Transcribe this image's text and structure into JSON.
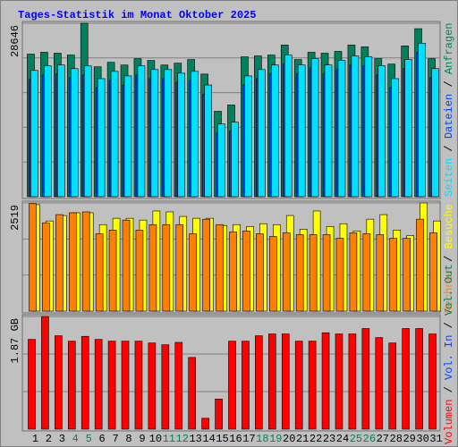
{
  "chart_data": {
    "type": "bar",
    "title": "Tages-Statistik im Monat Oktober 2025",
    "legend_separator": " / ",
    "categories": [
      "1",
      "2",
      "3",
      "4",
      "5",
      "6",
      "7",
      "8",
      "9",
      "10",
      "11",
      "12",
      "13",
      "14",
      "15",
      "16",
      "17",
      "18",
      "19",
      "20",
      "21",
      "22",
      "23",
      "24",
      "25",
      "26",
      "27",
      "28",
      "29",
      "30",
      "31"
    ],
    "category_colors": [
      "#000000",
      "#000000",
      "#000000",
      "#00805c",
      "#00805c",
      "#000000",
      "#000000",
      "#000000",
      "#000000",
      "#000000",
      "#00805c",
      "#00805c",
      "#000000",
      "#000000",
      "#000000",
      "#000000",
      "#000000",
      "#00805c",
      "#00805c",
      "#000000",
      "#000000",
      "#000000",
      "#000000",
      "#000000",
      "#00805c",
      "#00805c",
      "#000000",
      "#000000",
      "#000000",
      "#000000",
      "#000000"
    ],
    "panels": [
      {
        "ylim": [
          0,
          28646
        ],
        "yticks": [
          28646
        ],
        "series": [
          {
            "name": "Seiten",
            "color": "#00e0ff",
            "values": [
              20850,
              21600,
              21750,
              21150,
              21600,
              19500,
              20700,
              19950,
              21600,
              21000,
              21000,
              20400,
              20700,
              18450,
              12000,
              12300,
              19950,
              21000,
              21750,
              23400,
              21750,
              22800,
              21750,
              22500,
              23250,
              23100,
              21600,
              19500,
              22650,
              25350,
              21150
            ]
          },
          {
            "name": "Dateien",
            "color": "#0040ff",
            "values": [
              19350,
              20100,
              20250,
              19650,
              20100,
              18000,
              19200,
              18450,
              20100,
              19500,
              19500,
              18900,
              19200,
              16950,
              10500,
              10800,
              18450,
              19500,
              20250,
              21900,
              20250,
              21300,
              20250,
              21000,
              21750,
              21600,
              20100,
              18000,
              21150,
              23850,
              19650
            ]
          },
          {
            "name": "Anfragen",
            "color": "#00805c",
            "values": [
              23550,
              23850,
              23700,
              23400,
              28646,
              21450,
              22200,
              21750,
              22800,
              22500,
              21750,
              22050,
              22650,
              20250,
              14100,
              15150,
              23100,
              23250,
              23400,
              25050,
              22650,
              23850,
              23700,
              24000,
              25050,
              24750,
              22800,
              21900,
              24900,
              27750,
              22800
            ]
          }
        ]
      },
      {
        "ylim": [
          0,
          2519
        ],
        "yticks": [
          2519
        ],
        "series": [
          {
            "name": "Rechner",
            "color": "#ff8000",
            "values": [
              2502,
              2056,
              2247,
              2290,
              2311,
              1802,
              1887,
              2120,
              1887,
              2014,
              2014,
              2014,
              1802,
              2141,
              2014,
              1844,
              1866,
              1802,
              1738,
              1823,
              1781,
              1781,
              1781,
              1696,
              1823,
              1802,
              1781,
              1696,
              1696,
              2141,
              1823
            ]
          },
          {
            "name": "Besuche",
            "color": "#ffff00",
            "values": [
              2480,
              2099,
              2226,
              2290,
              2290,
              2014,
              2162,
              2162,
              2120,
              2332,
              2311,
              2205,
              2162,
              2162,
              1993,
              2014,
              1972,
              2035,
              2014,
              2226,
              1908,
              2332,
              1972,
              2035,
              1866,
              2141,
              2247,
              1887,
              1760,
              2519,
              2099
            ]
          }
        ]
      },
      {
        "ylim": [
          0,
          1.87
        ],
        "yticks": [
          {
            "value": 1.87,
            "label": "1.87 GB"
          }
        ],
        "series": [
          {
            "name": "Volumen",
            "color": "#ff0000",
            "values": [
              1.49,
              1.87,
              1.55,
              1.46,
              1.54,
              1.49,
              1.46,
              1.46,
              1.46,
              1.43,
              1.4,
              1.44,
              1.19,
              0.18,
              0.5,
              1.46,
              1.46,
              1.55,
              1.58,
              1.58,
              1.46,
              1.46,
              1.6,
              1.58,
              1.58,
              1.67,
              1.52,
              1.43,
              1.67,
              1.67,
              1.58
            ]
          }
        ],
        "legend_only": [
          {
            "name": "Vol. In",
            "color": "#0040ff"
          },
          {
            "name": "Vol. Out",
            "color": "#00805c"
          }
        ]
      }
    ]
  }
}
